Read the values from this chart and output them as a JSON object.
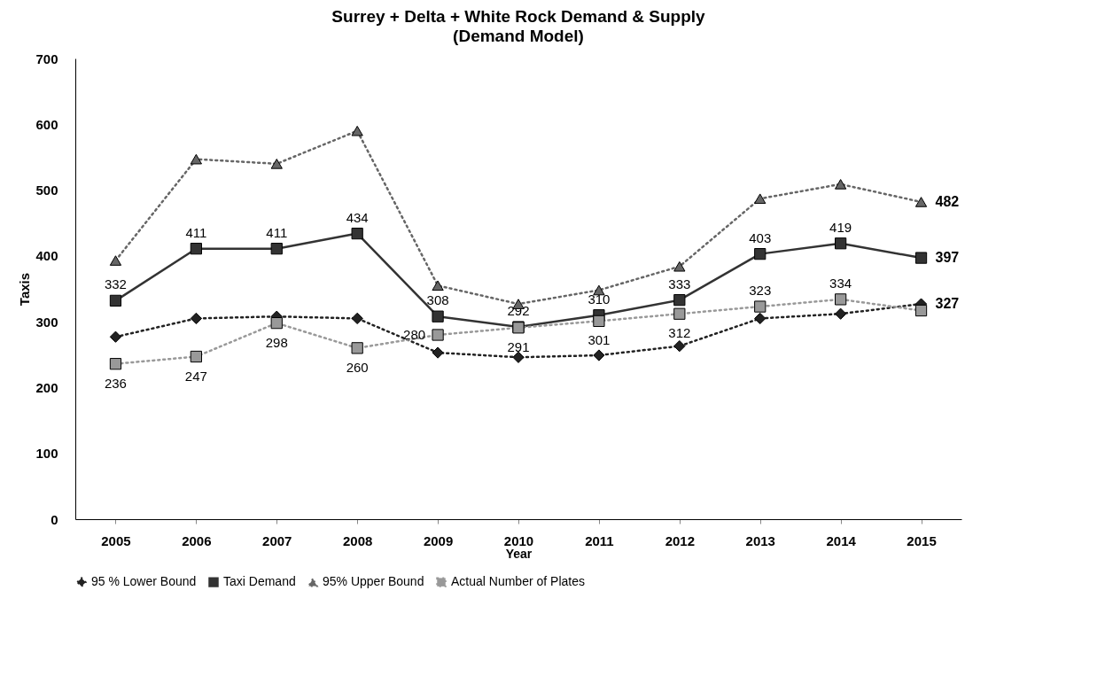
{
  "chart_data": {
    "type": "line",
    "title": "Surrey + Delta + White Rock Demand & Supply",
    "subtitle": "(Demand Model)",
    "xlabel": "Year",
    "ylabel": "Taxis",
    "categories": [
      "2005",
      "2006",
      "2007",
      "2008",
      "2009",
      "2010",
      "2011",
      "2012",
      "2013",
      "2014",
      "2015"
    ],
    "ylim": [
      0,
      700
    ],
    "yticks": [
      0,
      100,
      200,
      300,
      400,
      500,
      600,
      700
    ],
    "grid": false,
    "legend": "bottom",
    "series": [
      {
        "name": "95 % Lower Bound",
        "color": "#222222",
        "marker": "diamond",
        "line_style": "dotted",
        "values": [
          277,
          305,
          308,
          305,
          253,
          246,
          249,
          263,
          305,
          312,
          327
        ],
        "value_labels": [
          null,
          null,
          null,
          null,
          null,
          null,
          null,
          null,
          null,
          null,
          "327"
        ]
      },
      {
        "name": "Taxi Demand",
        "color": "#333333",
        "marker": "square",
        "line_style": "solid",
        "values": [
          332,
          411,
          411,
          434,
          308,
          292,
          310,
          333,
          403,
          419,
          397
        ],
        "value_labels": [
          "332",
          "411",
          "411",
          "434",
          "308",
          "292",
          "310",
          "333",
          "403",
          "419",
          "397"
        ]
      },
      {
        "name": "95% Upper Bound",
        "color": "#666666",
        "marker": "triangle",
        "line_style": "dotted",
        "values": [
          393,
          547,
          540,
          590,
          355,
          327,
          348,
          384,
          487,
          509,
          482
        ],
        "value_labels": [
          null,
          null,
          null,
          null,
          null,
          null,
          null,
          null,
          null,
          null,
          "482"
        ]
      },
      {
        "name": "Actual Number of Plates",
        "color": "#999999",
        "marker": "square",
        "line_style": "dotted",
        "values": [
          236,
          247,
          298,
          260,
          280,
          291,
          301,
          312,
          323,
          334,
          317
        ],
        "value_labels": [
          "236",
          "247",
          "298",
          "260",
          "280",
          "291",
          "301",
          "312",
          "323",
          "334",
          null
        ]
      }
    ]
  }
}
